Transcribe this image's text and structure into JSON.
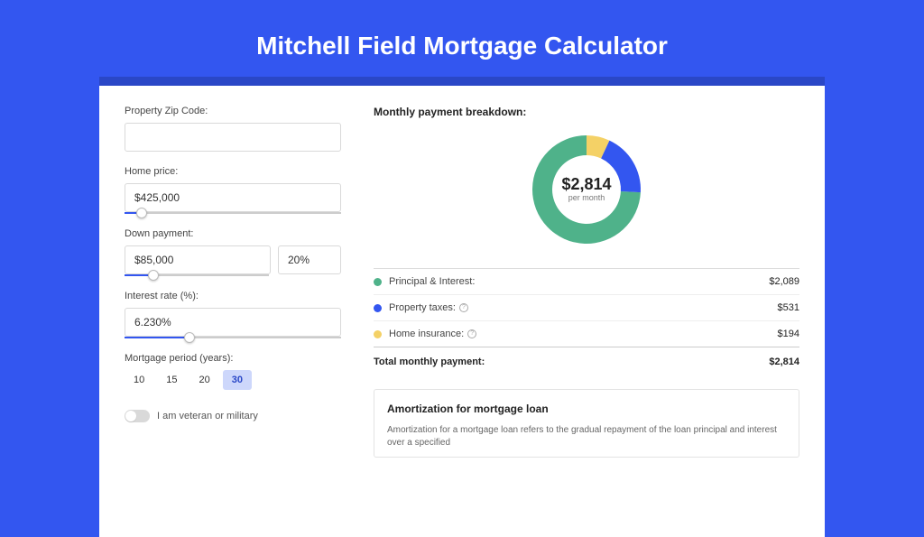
{
  "page": {
    "title": "Mitchell Field Mortgage Calculator",
    "bg_color": "#3356f0",
    "header_bg": "#2a47c7"
  },
  "form": {
    "zip": {
      "label": "Property Zip Code:",
      "value": ""
    },
    "home_price": {
      "label": "Home price:",
      "value": "$425,000",
      "slider_pct": 8
    },
    "down_payment": {
      "label": "Down payment:",
      "value": "$85,000",
      "pct_value": "20%",
      "slider_pct": 20
    },
    "interest_rate": {
      "label": "Interest rate (%):",
      "value": "6.230%",
      "slider_pct": 30
    },
    "mortgage_period": {
      "label": "Mortgage period (years):",
      "options": [
        "10",
        "15",
        "20",
        "30"
      ],
      "selected": "30"
    },
    "veteran": {
      "label": "I am veteran or military",
      "value": false
    }
  },
  "breakdown": {
    "title": "Monthly payment breakdown:",
    "center_value": "$2,814",
    "center_sub": "per month",
    "items": [
      {
        "label": "Principal & Interest:",
        "value": "$2,089",
        "color": "#4fb28a",
        "info": false
      },
      {
        "label": "Property taxes:",
        "value": "$531",
        "color": "#3356f0",
        "info": true
      },
      {
        "label": "Home insurance:",
        "value": "$194",
        "color": "#f4d166",
        "info": true
      }
    ],
    "total": {
      "label": "Total monthly payment:",
      "value": "$2,814"
    },
    "donut": {
      "segments": [
        {
          "color": "#f4d166",
          "start": -90,
          "end": -65
        },
        {
          "color": "#3356f0",
          "start": -65,
          "end": 3
        },
        {
          "color": "#4fb28a",
          "start": 3,
          "end": 270
        }
      ],
      "inner_r": 38,
      "outer_r": 60
    }
  },
  "amortization": {
    "title": "Amortization for mortgage loan",
    "text": "Amortization for a mortgage loan refers to the gradual repayment of the loan principal and interest over a specified"
  }
}
